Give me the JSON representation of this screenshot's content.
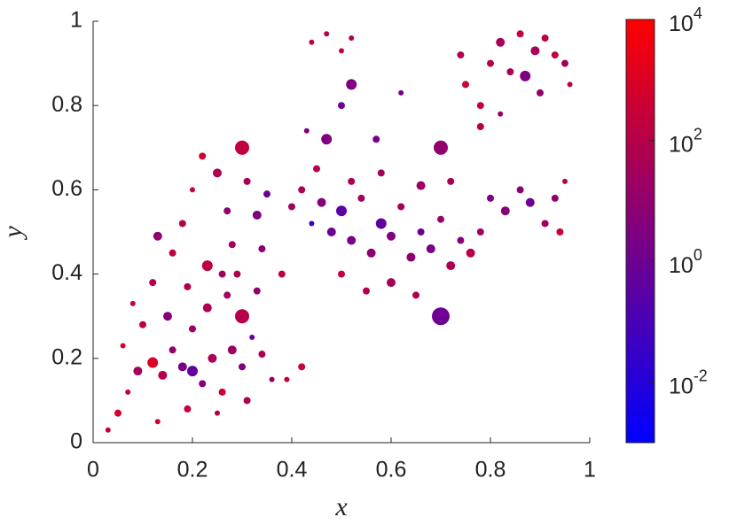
{
  "chart_data": {
    "type": "scatter",
    "xlabel": "x",
    "ylabel": "y",
    "xlim": [
      0,
      1
    ],
    "ylim": [
      0,
      1
    ],
    "xticks": [
      0,
      0.2,
      0.4,
      0.6,
      0.8,
      1
    ],
    "yticks": [
      0,
      0.2,
      0.4,
      0.6,
      0.8,
      1
    ],
    "colorbar": {
      "scale": "log",
      "lim": [
        0.001,
        10000
      ],
      "colors": [
        "#0000ff",
        "#ff0000"
      ],
      "ticks": [
        {
          "value": 0.01,
          "label": "10",
          "exponent": "-2"
        },
        {
          "value": 1,
          "label": "10",
          "exponent": "0"
        },
        {
          "value": 100,
          "label": "10",
          "exponent": "2"
        },
        {
          "value": 10000,
          "label": "10",
          "exponent": "4"
        }
      ]
    },
    "x": [
      0.03,
      0.05,
      0.07,
      0.09,
      0.12,
      0.14,
      0.16,
      0.18,
      0.2,
      0.22,
      0.24,
      0.26,
      0.28,
      0.3,
      0.32,
      0.34,
      0.13,
      0.19,
      0.25,
      0.31,
      0.1,
      0.08,
      0.12,
      0.15,
      0.2,
      0.23,
      0.27,
      0.3,
      0.33,
      0.06,
      0.36,
      0.42,
      0.39,
      0.16,
      0.18,
      0.2,
      0.22,
      0.25,
      0.27,
      0.28,
      0.3,
      0.31,
      0.33,
      0.35,
      0.23,
      0.26,
      0.13,
      0.29,
      0.34,
      0.19,
      0.4,
      0.42,
      0.44,
      0.46,
      0.48,
      0.5,
      0.52,
      0.54,
      0.56,
      0.58,
      0.6,
      0.62,
      0.64,
      0.66,
      0.68,
      0.7,
      0.72,
      0.74,
      0.76,
      0.78,
      0.8,
      0.83,
      0.86,
      0.88,
      0.91,
      0.93,
      0.95,
      0.94,
      0.5,
      0.55,
      0.6,
      0.65,
      0.52,
      0.58,
      0.66,
      0.72,
      0.45,
      0.38,
      0.7,
      0.47,
      0.7,
      0.52,
      0.62,
      0.5,
      0.43,
      0.57,
      0.44,
      0.47,
      0.5,
      0.52,
      0.75,
      0.78,
      0.8,
      0.82,
      0.84,
      0.86,
      0.87,
      0.89,
      0.91,
      0.93,
      0.95,
      0.96,
      0.74,
      0.78,
      0.82,
      0.9
    ],
    "y": [
      0.03,
      0.07,
      0.12,
      0.17,
      0.19,
      0.16,
      0.22,
      0.18,
      0.17,
      0.14,
      0.2,
      0.12,
      0.22,
      0.18,
      0.25,
      0.21,
      0.05,
      0.08,
      0.07,
      0.1,
      0.28,
      0.33,
      0.38,
      0.3,
      0.27,
      0.32,
      0.35,
      0.3,
      0.36,
      0.23,
      0.15,
      0.18,
      0.15,
      0.45,
      0.52,
      0.6,
      0.68,
      0.64,
      0.55,
      0.47,
      0.7,
      0.62,
      0.54,
      0.59,
      0.42,
      0.4,
      0.49,
      0.4,
      0.46,
      0.37,
      0.56,
      0.6,
      0.52,
      0.57,
      0.5,
      0.55,
      0.48,
      0.58,
      0.45,
      0.52,
      0.49,
      0.56,
      0.44,
      0.5,
      0.46,
      0.53,
      0.42,
      0.48,
      0.45,
      0.5,
      0.58,
      0.55,
      0.6,
      0.57,
      0.52,
      0.58,
      0.62,
      0.5,
      0.4,
      0.36,
      0.38,
      0.35,
      0.62,
      0.64,
      0.61,
      0.62,
      0.65,
      0.4,
      0.3,
      0.72,
      0.7,
      0.85,
      0.83,
      0.8,
      0.74,
      0.72,
      0.95,
      0.97,
      0.93,
      0.96,
      0.85,
      0.8,
      0.9,
      0.95,
      0.88,
      0.97,
      0.87,
      0.93,
      0.96,
      0.92,
      0.9,
      0.85,
      0.92,
      0.75,
      0.78,
      0.83
    ],
    "sizes": [
      9,
      16,
      9,
      25,
      36,
      25,
      16,
      25,
      36,
      16,
      25,
      16,
      25,
      16,
      9,
      16,
      9,
      16,
      9,
      16,
      16,
      9,
      16,
      25,
      16,
      25,
      16,
      64,
      16,
      9,
      9,
      16,
      9,
      16,
      16,
      9,
      16,
      25,
      16,
      16,
      64,
      16,
      25,
      16,
      36,
      16,
      25,
      16,
      16,
      16,
      16,
      16,
      9,
      25,
      25,
      36,
      25,
      16,
      25,
      36,
      25,
      16,
      25,
      16,
      25,
      16,
      25,
      16,
      25,
      16,
      16,
      25,
      16,
      25,
      16,
      16,
      9,
      16,
      16,
      16,
      25,
      16,
      16,
      16,
      25,
      16,
      16,
      16,
      100,
      36,
      64,
      36,
      9,
      16,
      9,
      16,
      9,
      9,
      9,
      9,
      16,
      16,
      16,
      25,
      16,
      16,
      36,
      25,
      16,
      16,
      16,
      9,
      16,
      16,
      9,
      16
    ],
    "color_values": [
      300,
      800,
      200,
      30,
      900,
      100,
      10,
      2,
      0.5,
      5,
      50,
      300,
      20,
      3,
      1,
      40,
      500,
      200,
      100,
      60,
      150,
      400,
      80,
      5,
      20,
      60,
      30,
      100,
      10,
      600,
      8,
      300,
      200,
      200,
      100,
      300,
      500,
      50,
      8,
      30,
      200,
      40,
      3,
      1,
      150,
      20,
      10,
      60,
      5,
      90,
      20,
      60,
      0.05,
      5,
      1,
      0.3,
      2,
      30,
      8,
      0.5,
      3,
      40,
      10,
      0.8,
      2,
      20,
      50,
      5,
      100,
      30,
      2,
      5,
      8,
      1,
      20,
      10,
      100,
      300,
      200,
      100,
      40,
      80,
      60,
      30,
      20,
      50,
      80,
      150,
      1,
      3,
      10,
      3,
      2,
      1,
      4,
      2,
      200,
      100,
      300,
      60,
      300,
      200,
      100,
      40,
      60,
      200,
      3,
      50,
      100,
      200,
      30,
      150,
      80,
      100,
      20,
      10
    ]
  }
}
